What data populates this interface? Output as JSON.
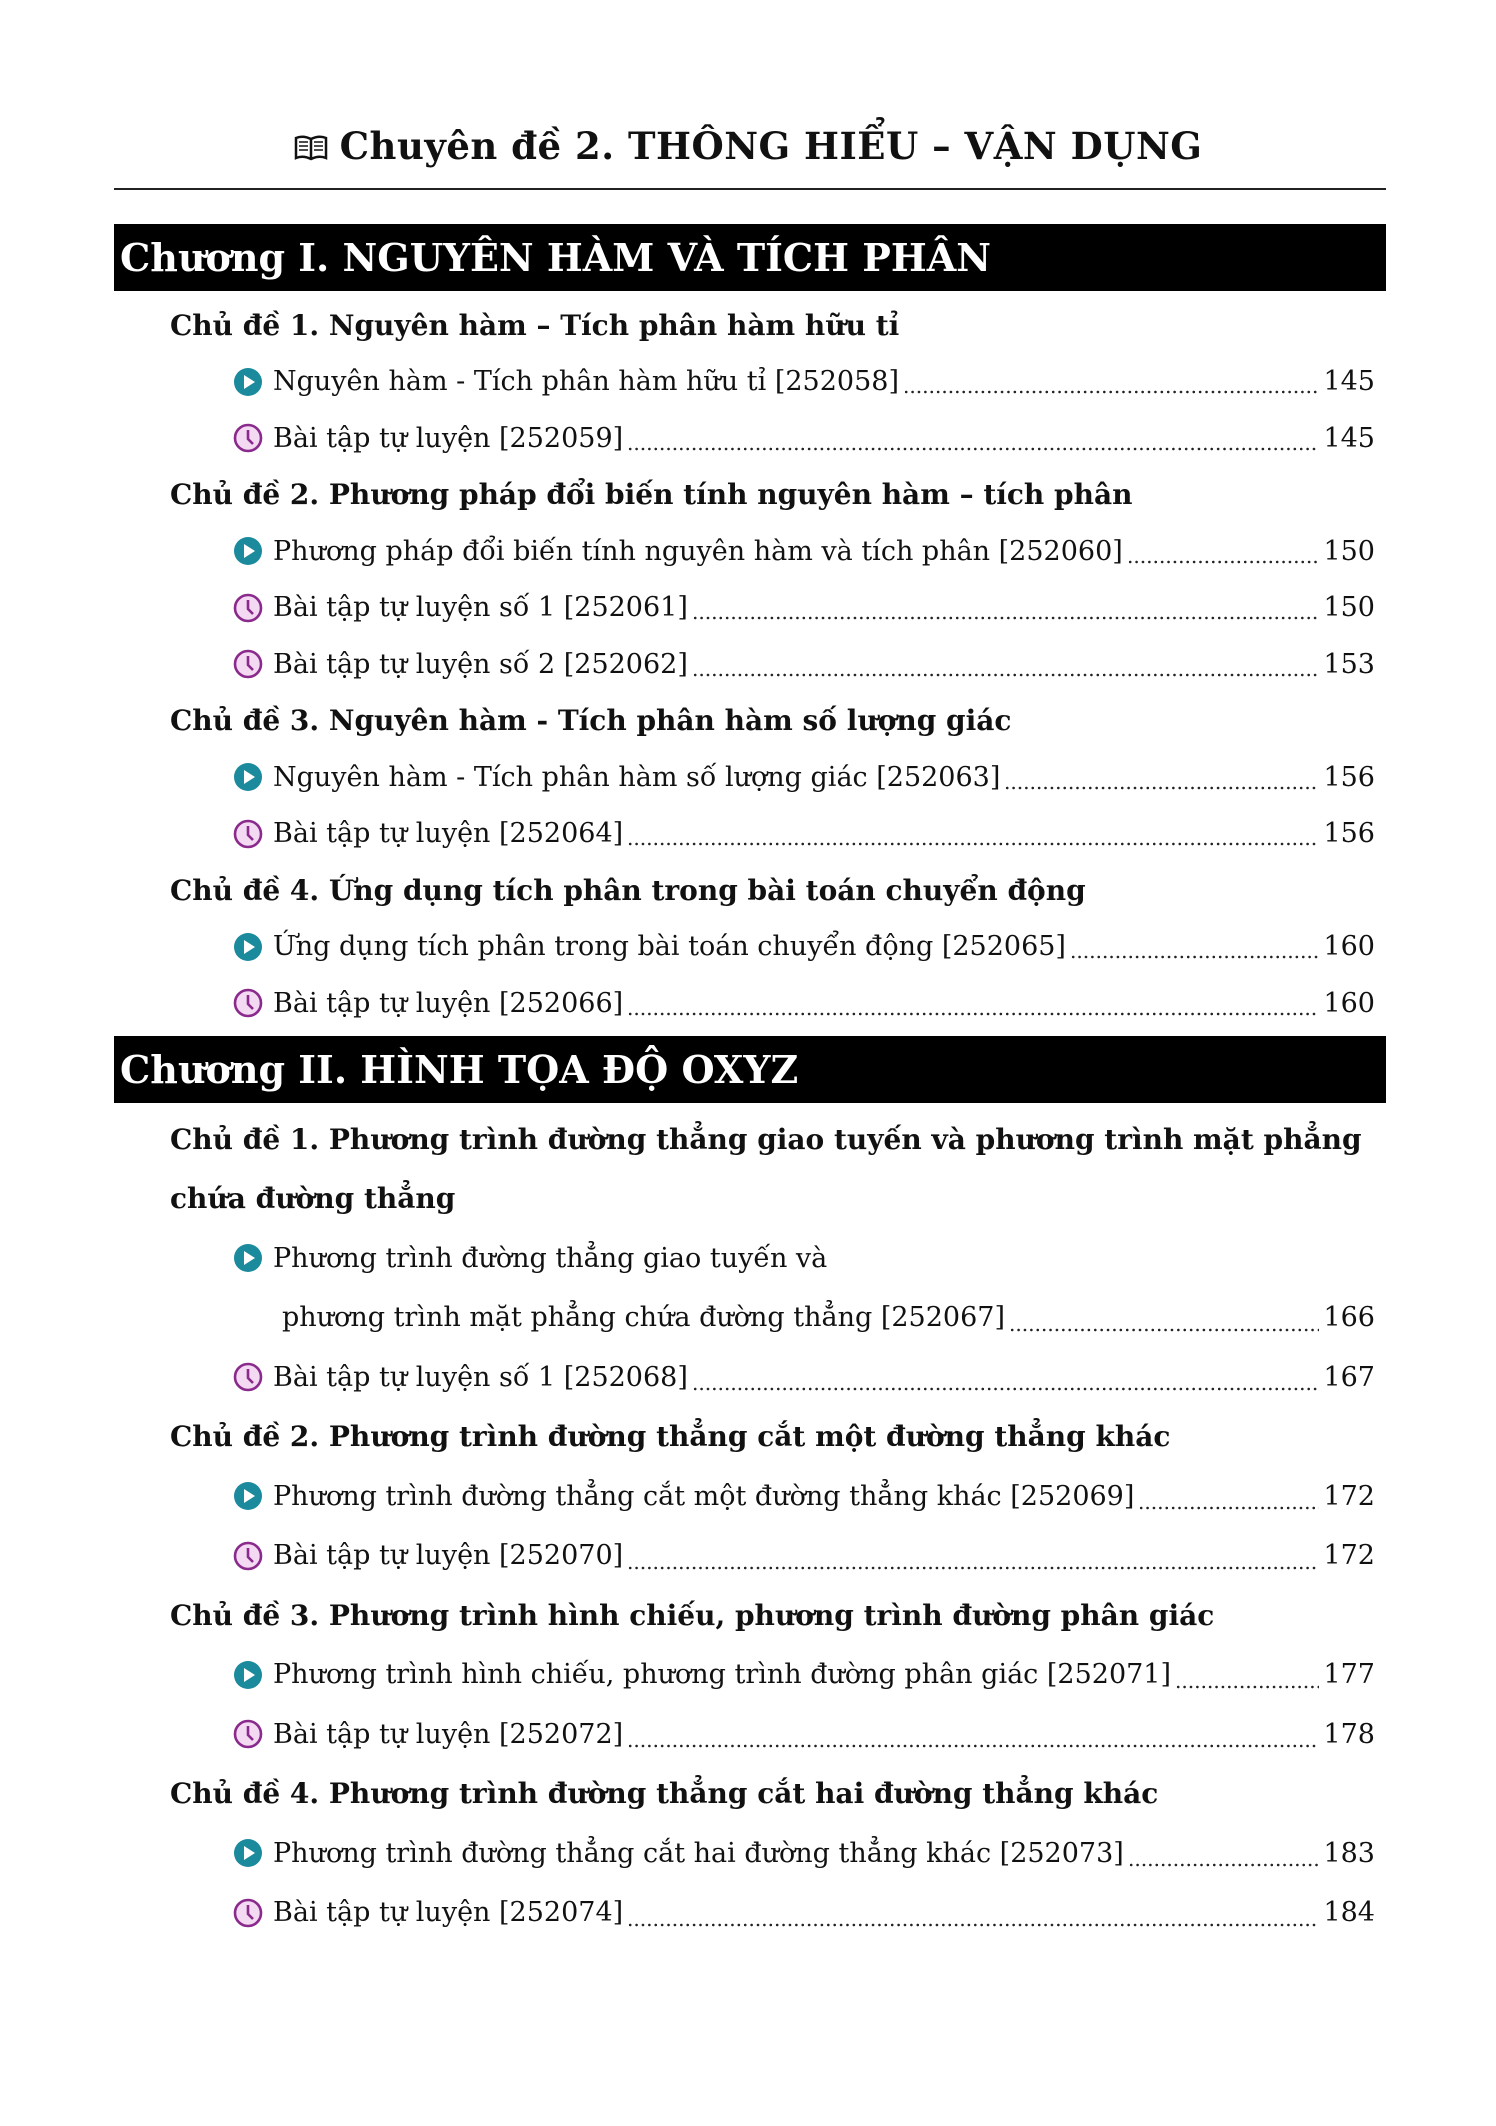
{
  "header": {
    "icon": "open-book-icon",
    "title": "Chuyên đề 2. THÔNG HIỂU – VẬN DỤNG"
  },
  "colors": {
    "video_icon": "#1a8a9c",
    "exercise_icon": "#8a2a8c",
    "exercise_icon_bg": "#f3d9f2",
    "chapter_bar": "#000000"
  },
  "chapters": [
    {
      "title": "Chương I. NGUYÊN HÀM VÀ TÍCH PHÂN",
      "topics": [
        {
          "title": "Chủ đề 1. Nguyên hàm – Tích phân hàm hữu tỉ",
          "items": [
            {
              "type": "video",
              "icon": "play-circle-icon",
              "text": "Nguyên hàm - Tích phân hàm hữu tỉ [252058]",
              "page": "145"
            },
            {
              "type": "exercise",
              "icon": "clock-icon",
              "text": "Bài tập tự luyện [252059]",
              "page": "145"
            }
          ]
        },
        {
          "title": "Chủ đề 2. Phương pháp đổi biến tính nguyên hàm – tích phân",
          "items": [
            {
              "type": "video",
              "icon": "play-circle-icon",
              "text": "Phương pháp đổi biến tính nguyên hàm và tích phân [252060]",
              "page": "150"
            },
            {
              "type": "exercise",
              "icon": "clock-icon",
              "text": "Bài tập tự luyện số 1 [252061]",
              "page": "150"
            },
            {
              "type": "exercise",
              "icon": "clock-icon",
              "text": "Bài tập tự luyện số 2 [252062]",
              "page": "153"
            }
          ]
        },
        {
          "title": "Chủ đề 3. Nguyên hàm - Tích phân hàm số lượng giác",
          "items": [
            {
              "type": "video",
              "icon": "play-circle-icon",
              "text": "Nguyên hàm - Tích phân hàm số lượng giác [252063]",
              "page": "156"
            },
            {
              "type": "exercise",
              "icon": "clock-icon",
              "text": "Bài tập tự luyện [252064]",
              "page": "156"
            }
          ]
        },
        {
          "title": "Chủ đề 4. Ứng dụng tích phân trong bài toán chuyển động",
          "items": [
            {
              "type": "video",
              "icon": "play-circle-icon",
              "text": "Ứng dụng tích phân trong bài toán chuyển động [252065]",
              "page": "160"
            },
            {
              "type": "exercise",
              "icon": "clock-icon",
              "text": "Bài tập tự luyện [252066]",
              "page": "160"
            }
          ]
        }
      ]
    },
    {
      "title": "Chương II. HÌNH TỌA ĐỘ OXYZ",
      "topics": [
        {
          "title": "Chủ đề 1. Phương trình đường thẳng giao tuyến và phương trình mặt phẳng",
          "title2": "chứa đường thẳng",
          "items": [
            {
              "type": "video",
              "icon": "play-circle-icon",
              "text": "Phương trình đường thẳng giao tuyến và",
              "text2": "phương trình mặt phẳng chứa đường thẳng [252067]",
              "page": "166"
            },
            {
              "type": "exercise",
              "icon": "clock-icon",
              "text": "Bài tập tự luyện số 1 [252068]",
              "page": "167"
            }
          ]
        },
        {
          "title": "Chủ đề 2. Phương trình đường thẳng cắt một đường thẳng khác",
          "items": [
            {
              "type": "video",
              "icon": "play-circle-icon",
              "text": "Phương trình đường thẳng cắt một đường thẳng khác [252069]",
              "page": "172"
            },
            {
              "type": "exercise",
              "icon": "clock-icon",
              "text": "Bài tập tự luyện [252070]",
              "page": "172"
            }
          ]
        },
        {
          "title": "Chủ đề 3. Phương trình hình chiếu, phương trình đường phân giác",
          "items": [
            {
              "type": "video",
              "icon": "play-circle-icon",
              "text": "Phương trình hình chiếu, phương trình đường phân giác [252071]",
              "page": "177"
            },
            {
              "type": "exercise",
              "icon": "clock-icon",
              "text": "Bài tập tự luyện [252072]",
              "page": "178"
            }
          ]
        },
        {
          "title": "Chủ đề 4. Phương trình đường thẳng cắt hai đường thẳng khác",
          "items": [
            {
              "type": "video",
              "icon": "play-circle-icon",
              "text": "Phương trình đường thẳng cắt hai đường thẳng khác [252073]",
              "page": "183"
            },
            {
              "type": "exercise",
              "icon": "clock-icon",
              "text": "Bài tập tự luyện [252074]",
              "page": "184"
            }
          ]
        }
      ]
    }
  ]
}
